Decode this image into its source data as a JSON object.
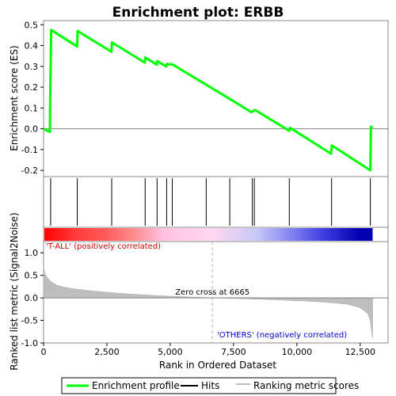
{
  "chart_data": {
    "type": "line",
    "title": "Enrichment plot: ERBB",
    "es_panel": {
      "ylabel": "Enrichment score (ES)",
      "ylim": [
        -0.23,
        0.52
      ],
      "yticks": [
        "0.5",
        "0.4",
        "0.3",
        "0.2",
        "0.1",
        "0.0",
        "-0.1",
        "-0.2"
      ],
      "ytick_values": [
        0.5,
        0.4,
        0.3,
        0.2,
        0.1,
        0.0,
        -0.1,
        -0.2
      ],
      "series": [
        {
          "name": "Enrichment profile",
          "color": "#00ff00",
          "x": [
            0,
            250,
            260,
            280,
            300,
            1330,
            1340,
            2680,
            2700,
            4000,
            4010,
            4470,
            4480,
            4850,
            4870,
            4950,
            5080,
            7400,
            8200,
            8350,
            9700,
            9730,
            11350,
            11380,
            12900,
            12920,
            12990
          ],
          "y": [
            0.0,
            -0.015,
            0.15,
            0.31,
            0.475,
            0.395,
            0.47,
            0.37,
            0.415,
            0.318,
            0.343,
            0.308,
            0.325,
            0.3,
            0.312,
            0.31,
            0.31,
            0.14,
            0.08,
            0.09,
            -0.01,
            0.005,
            -0.12,
            -0.08,
            -0.2,
            0.01,
            0.005
          ]
        }
      ]
    },
    "hits": {
      "label": "Hits",
      "color": "#000000",
      "x": [
        280,
        1330,
        2690,
        4010,
        4480,
        4860,
        5080,
        6420,
        7350,
        8240,
        8320,
        9700,
        11370,
        12900
      ]
    },
    "heatmap_bar": {
      "stops": [
        {
          "x": 0,
          "color": "#ff0000"
        },
        {
          "x": 1200,
          "color": "#ff3a3a"
        },
        {
          "x": 2400,
          "color": "#ff5a5a"
        },
        {
          "x": 3500,
          "color": "#ff8a8a"
        },
        {
          "x": 4700,
          "color": "#ffc0e0"
        },
        {
          "x": 6600,
          "color": "#ffd8f0"
        },
        {
          "x": 8400,
          "color": "#c8c8f8"
        },
        {
          "x": 10100,
          "color": "#7070f0"
        },
        {
          "x": 11000,
          "color": "#4040e0"
        },
        {
          "x": 12500,
          "color": "#0000b0"
        }
      ]
    },
    "metric_panel": {
      "ylabel": "Ranked list metric (Signal2Noise)",
      "ylim": [
        -1.0,
        1.25
      ],
      "yticks": [
        "1.0",
        "0.5",
        "0.0",
        "-0.5",
        "-1.0"
      ],
      "ytick_values": [
        1.0,
        0.5,
        0.0,
        -0.5,
        -1.0
      ],
      "series": [
        {
          "name": "Ranking metric scores",
          "color": "#bebebe",
          "x": [
            0,
            50,
            150,
            300,
            500,
            800,
            1200,
            2000,
            3000,
            4500,
            6665,
            8000,
            9500,
            11000,
            12000,
            12500,
            12800,
            12900,
            12950,
            12990
          ],
          "y": [
            0.72,
            0.55,
            0.45,
            0.36,
            0.29,
            0.24,
            0.2,
            0.15,
            0.1,
            0.05,
            0.0,
            -0.02,
            -0.05,
            -0.09,
            -0.14,
            -0.22,
            -0.35,
            -0.5,
            -0.75,
            -0.9
          ]
        }
      ],
      "zero_cross": 6665,
      "zero_cross_label": "Zero cross at 6665",
      "pos_label": "'T-ALL' (positively correlated)",
      "neg_label": "'OTHERS' (negatively correlated)"
    },
    "xlabel": "Rank in Ordered Dataset",
    "xlim": [
      0,
      13600
    ],
    "xticks": [
      "0",
      "2,500",
      "5,000",
      "7,500",
      "10,000",
      "12,500"
    ],
    "xtick_values": [
      0,
      2500,
      5000,
      7500,
      10000,
      12500
    ],
    "legend": {
      "placement": "bottom",
      "items": [
        {
          "label": "Enrichment profile",
          "color": "#00ff00"
        },
        {
          "label": "Hits",
          "color": "#000000"
        },
        {
          "label": "Ranking metric scores",
          "color": "#bebebe"
        }
      ]
    }
  }
}
